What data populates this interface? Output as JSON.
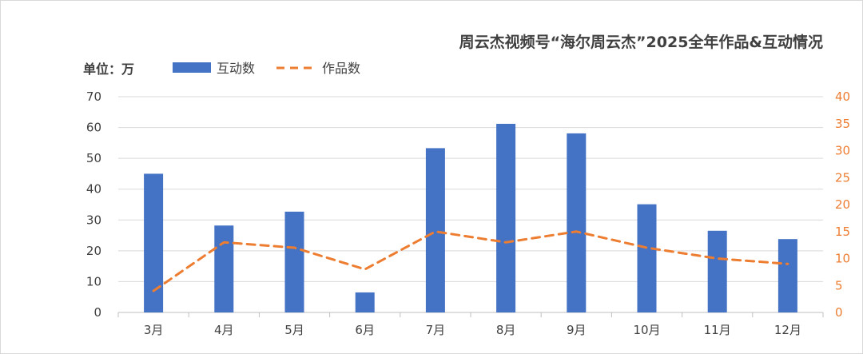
{
  "chart_data": {
    "type": "bar",
    "title": "周云杰视频号“海尔周云杰”2025全年作品&互动情况",
    "unit_label": "单位：万",
    "categories": [
      "3月",
      "4月",
      "5月",
      "6月",
      "7月",
      "8月",
      "9月",
      "10月",
      "11月",
      "12月"
    ],
    "series": [
      {
        "name": "互动数",
        "type": "bar",
        "axis": "left",
        "color": "#4472c4",
        "values": [
          45,
          28.2,
          32.7,
          6.5,
          53.3,
          61.2,
          58.1,
          35.1,
          26.5,
          23.8
        ]
      },
      {
        "name": "作品数",
        "type": "line",
        "axis": "right",
        "color": "#ed7d31",
        "style": "dashed",
        "values": [
          4,
          13,
          12,
          8,
          15,
          13,
          15,
          12,
          10,
          9
        ]
      }
    ],
    "y_left": {
      "min": 0,
      "max": 70,
      "ticks": [
        0,
        10,
        20,
        30,
        40,
        50,
        60,
        70
      ]
    },
    "y_right": {
      "min": 0,
      "max": 40,
      "ticks": [
        0,
        5,
        10,
        15,
        20,
        25,
        30,
        35,
        40
      ]
    },
    "grid": true,
    "legend_position": "top-left"
  }
}
